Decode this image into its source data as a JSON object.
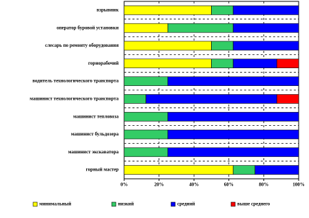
{
  "chart_data": {
    "type": "stacked-bar-horizontal",
    "categories": [
      "взрывник",
      "оператор буровой установки",
      "слесарь по ремонту оборудования",
      "горнорабочий",
      "водитель технологического транспорта",
      "машинист технологического транспорта",
      "машинист тепловоза",
      "машинист бульдозера",
      "машинист экскаватора",
      "горный мастер"
    ],
    "series": [
      {
        "name": "минимальный",
        "color": "#ffff00",
        "values": [
          50,
          25,
          50,
          50,
          0,
          0,
          0,
          0,
          0,
          62.5
        ]
      },
      {
        "name": "низкий",
        "color": "#33cc66",
        "values": [
          12.5,
          37.5,
          12.5,
          12.5,
          25,
          12.5,
          25,
          25,
          25,
          12.5
        ]
      },
      {
        "name": "средний",
        "color": "#0000ff",
        "values": [
          37.5,
          37.5,
          37.5,
          25,
          75,
          75,
          75,
          75,
          75,
          25
        ]
      },
      {
        "name": "выше среднего",
        "color": "#ff0000",
        "values": [
          0,
          0,
          0,
          12.5,
          0,
          12.5,
          0,
          0,
          0,
          0
        ]
      }
    ],
    "xlim": [
      0,
      100
    ],
    "xticks": [
      {
        "value": 0,
        "label": "0%"
      },
      {
        "value": 20,
        "label": "20%"
      },
      {
        "value": 40,
        "label": "40%"
      },
      {
        "value": 60,
        "label": "60%"
      },
      {
        "value": 80,
        "label": "80%"
      },
      {
        "value": 100,
        "label": "100%"
      }
    ],
    "grid": true,
    "legend": "bottom"
  }
}
